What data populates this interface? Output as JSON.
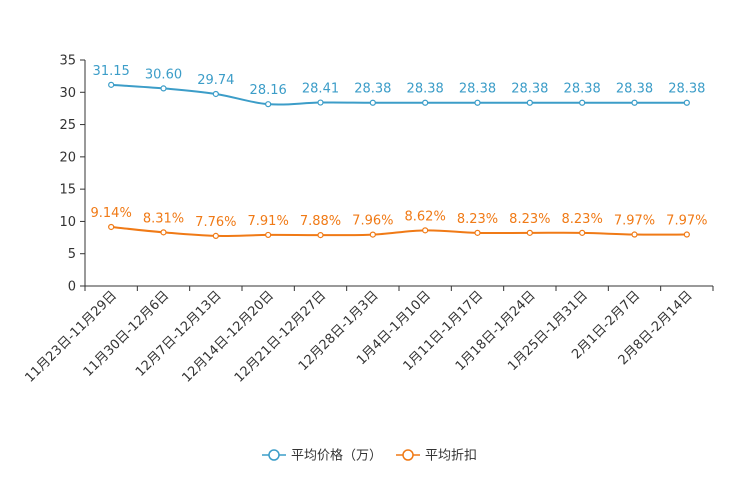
{
  "chart_data": {
    "type": "line",
    "title": "",
    "xlabel": "",
    "ylabel": "",
    "ylim": [
      0,
      35
    ],
    "y_ticks": [
      0,
      5,
      10,
      15,
      20,
      25,
      30,
      35
    ],
    "grid": false,
    "legend_position": "bottom",
    "categories": [
      "11月23日-11月29日",
      "11月30日-12月6日",
      "12月7日-12月13日",
      "12月14日-12月20日",
      "12月21日-12月27日",
      "12月28日-1月3日",
      "1月4日-1月10日",
      "1月11日-1月17日",
      "1月18日-1月24日",
      "1月25日-1月31日",
      "2月1日-2月7日",
      "2月8日-2月14日"
    ],
    "series": [
      {
        "name": "平均价格（万）",
        "color": "#3c9dc8",
        "values": [
          31.15,
          30.6,
          29.74,
          28.16,
          28.41,
          28.38,
          28.38,
          28.38,
          28.38,
          28.38,
          28.38,
          28.38
        ],
        "labels": [
          "31.15",
          "30.60",
          "29.74",
          "28.16",
          "28.41",
          "28.38",
          "28.38",
          "28.38",
          "28.38",
          "28.38",
          "28.38",
          "28.38"
        ]
      },
      {
        "name": "平均折扣",
        "color": "#f07a16",
        "values": [
          9.14,
          8.31,
          7.76,
          7.91,
          7.88,
          7.96,
          8.62,
          8.23,
          8.23,
          8.23,
          7.97,
          7.97
        ],
        "labels": [
          "9.14%",
          "8.31%",
          "7.76%",
          "7.91%",
          "7.88%",
          "7.96%",
          "8.62%",
          "8.23%",
          "8.23%",
          "8.23%",
          "7.97%",
          "7.97%"
        ]
      }
    ]
  }
}
